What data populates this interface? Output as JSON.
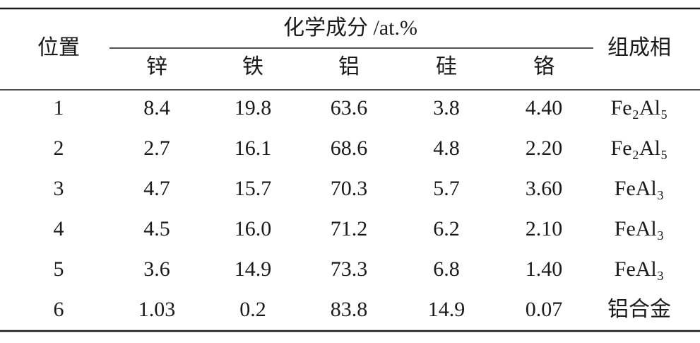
{
  "table": {
    "header": {
      "position": "位置",
      "composition": "化学成分 /at.%",
      "phase": "组成相",
      "elements": [
        "锌",
        "铁",
        "铝",
        "硅",
        "铬"
      ]
    },
    "rows": [
      [
        "1",
        "8.4",
        "19.8",
        "63.6",
        "3.8",
        "4.40",
        "Fe₂Al₅"
      ],
      [
        "2",
        "2.7",
        "16.1",
        "68.6",
        "4.8",
        "2.20",
        "Fe₂Al₅"
      ],
      [
        "3",
        "4.7",
        "15.7",
        "70.3",
        "5.7",
        "3.60",
        "FeAl₃"
      ],
      [
        "4",
        "4.5",
        "16.0",
        "71.2",
        "6.2",
        "2.10",
        "FeAl₃"
      ],
      [
        "5",
        "3.6",
        "14.9",
        "73.3",
        "6.8",
        "1.40",
        "FeAl₃"
      ],
      [
        "6",
        "1.03",
        "0.2",
        "83.8",
        "14.9",
        "0.07",
        "铝合金"
      ]
    ]
  }
}
